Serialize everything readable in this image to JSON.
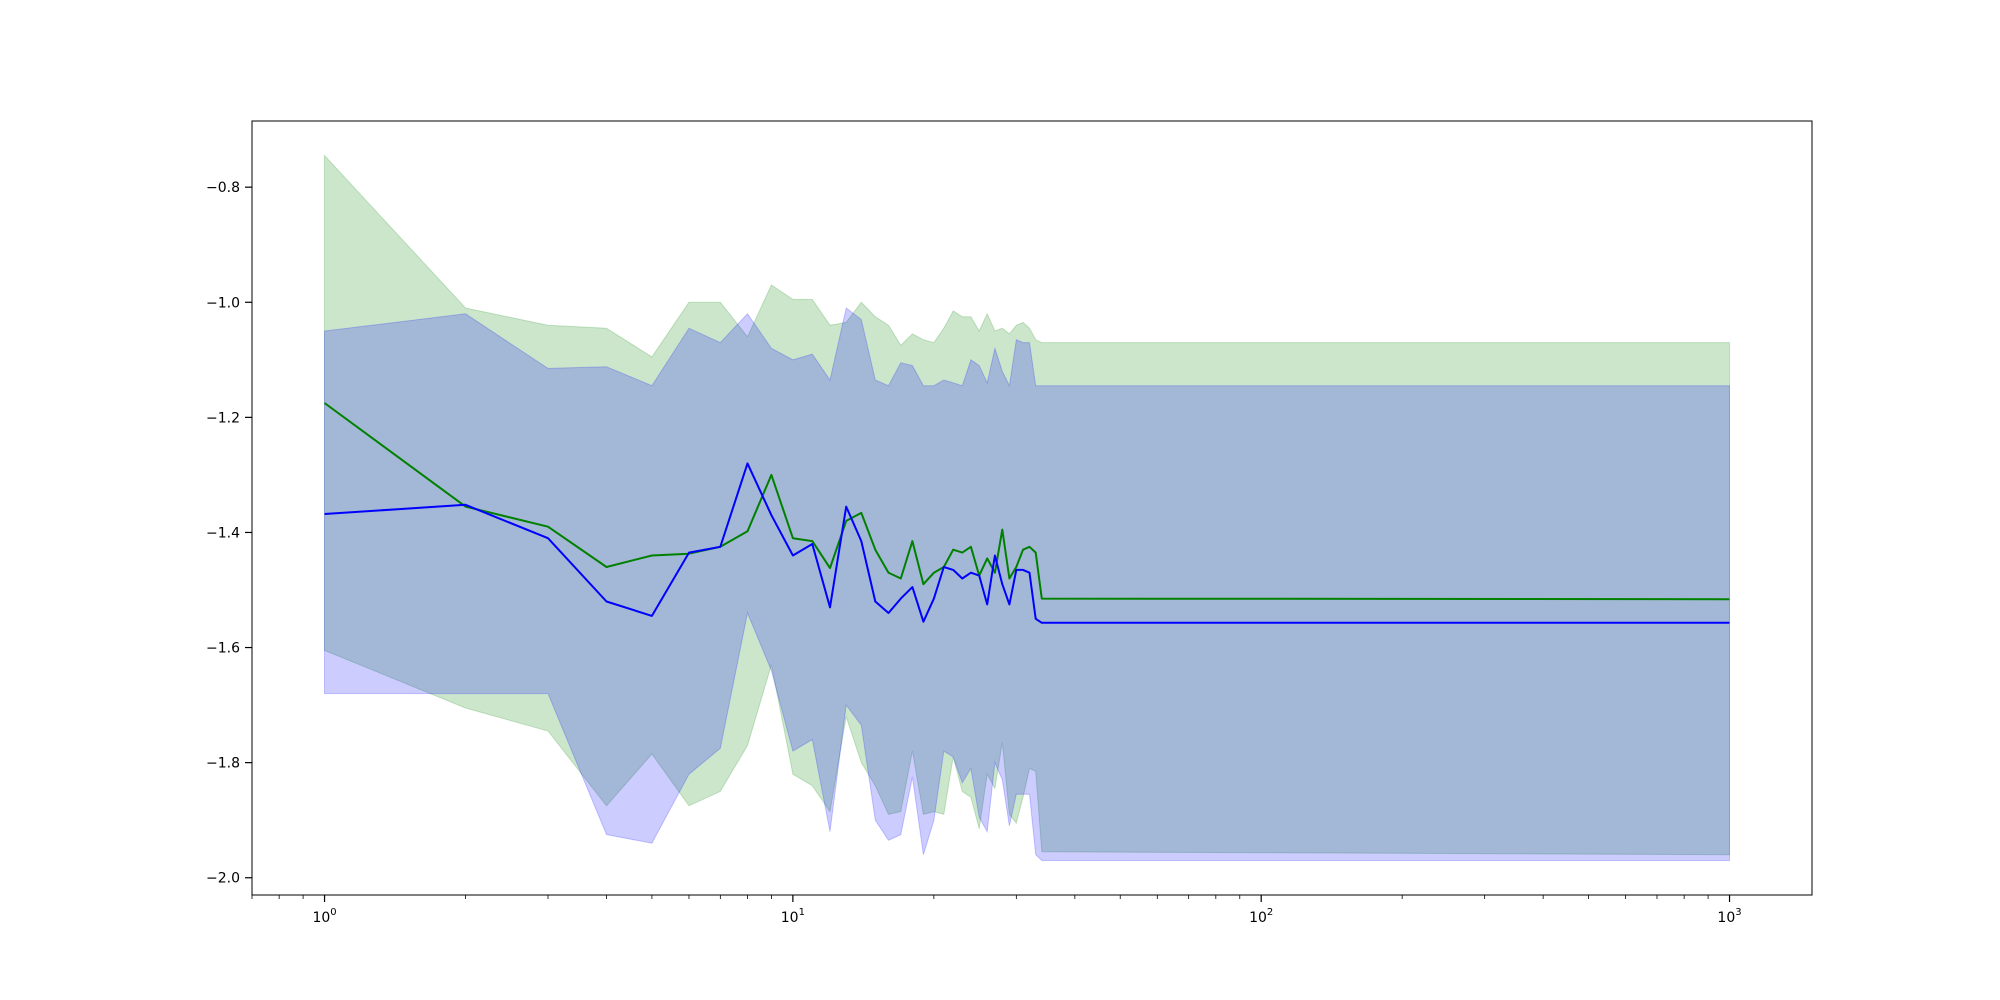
{
  "chart_data": {
    "type": "line",
    "title": "",
    "xlabel": "",
    "ylabel": "",
    "xscale": "log",
    "xlim": [
      0.7,
      1500
    ],
    "ylim": [
      -2.03,
      -0.685
    ],
    "grid": false,
    "legend": "none",
    "x_ticks": [
      {
        "value": 1,
        "base": "10",
        "exp": "0"
      },
      {
        "value": 10,
        "base": "10",
        "exp": "1"
      },
      {
        "value": 100,
        "base": "10",
        "exp": "2"
      },
      {
        "value": 1000,
        "base": "10",
        "exp": "3"
      }
    ],
    "y_ticks": [
      {
        "value": -0.8,
        "label": "−0.8"
      },
      {
        "value": -1.0,
        "label": "−1.0"
      },
      {
        "value": -1.2,
        "label": "−1.2"
      },
      {
        "value": -1.4,
        "label": "−1.4"
      },
      {
        "value": -1.6,
        "label": "−1.6"
      },
      {
        "value": -1.8,
        "label": "−1.8"
      },
      {
        "value": -2.0,
        "label": "−2.0"
      }
    ],
    "series": [
      {
        "color": "#008000",
        "band_color": "#008000",
        "band_opacity": 0.2,
        "x": [
          1,
          2,
          3,
          4,
          5,
          6,
          7,
          8,
          9,
          10,
          11,
          12,
          13,
          14,
          15,
          16,
          17,
          18,
          19,
          20,
          21,
          22,
          23,
          24,
          25,
          26,
          27,
          28,
          29,
          30,
          31,
          32,
          33,
          34,
          1000
        ],
        "y": [
          -1.175,
          -1.355,
          -1.39,
          -1.46,
          -1.44,
          -1.437,
          -1.425,
          -1.398,
          -1.3,
          -1.41,
          -1.415,
          -1.462,
          -1.38,
          -1.366,
          -1.43,
          -1.47,
          -1.48,
          -1.415,
          -1.49,
          -1.47,
          -1.46,
          -1.43,
          -1.435,
          -1.425,
          -1.475,
          -1.445,
          -1.47,
          -1.395,
          -1.48,
          -1.46,
          -1.43,
          -1.425,
          -1.435,
          -1.515,
          -1.516
        ],
        "upper": [
          -0.745,
          -1.01,
          -1.04,
          -1.045,
          -1.095,
          -1.0,
          -1.0,
          -1.06,
          -0.97,
          -0.995,
          -0.995,
          -1.04,
          -1.035,
          -1.0,
          -1.025,
          -1.04,
          -1.075,
          -1.055,
          -1.065,
          -1.07,
          -1.045,
          -1.015,
          -1.025,
          -1.025,
          -1.05,
          -1.02,
          -1.05,
          -1.045,
          -1.055,
          -1.04,
          -1.035,
          -1.045,
          -1.065,
          -1.07,
          -1.07
        ],
        "lower": [
          -1.605,
          -1.705,
          -1.745,
          -1.875,
          -1.785,
          -1.875,
          -1.85,
          -1.77,
          -1.63,
          -1.82,
          -1.84,
          -1.885,
          -1.72,
          -1.8,
          -1.84,
          -1.89,
          -1.885,
          -1.78,
          -1.89,
          -1.885,
          -1.89,
          -1.79,
          -1.85,
          -1.86,
          -1.915,
          -1.82,
          -1.845,
          -1.765,
          -1.89,
          -1.905,
          -1.86,
          -1.81,
          -1.815,
          -1.955,
          -1.96
        ]
      },
      {
        "color": "#0000ff",
        "band_color": "#0000ff",
        "band_opacity": 0.2,
        "x": [
          1,
          2,
          3,
          4,
          5,
          6,
          7,
          8,
          9,
          10,
          11,
          12,
          13,
          14,
          15,
          16,
          17,
          18,
          19,
          20,
          21,
          22,
          23,
          24,
          25,
          26,
          27,
          28,
          29,
          30,
          31,
          32,
          33,
          34,
          1000
        ],
        "y": [
          -1.368,
          -1.352,
          -1.41,
          -1.52,
          -1.545,
          -1.435,
          -1.425,
          -1.28,
          -1.37,
          -1.44,
          -1.42,
          -1.53,
          -1.355,
          -1.415,
          -1.52,
          -1.54,
          -1.515,
          -1.495,
          -1.555,
          -1.515,
          -1.46,
          -1.465,
          -1.48,
          -1.47,
          -1.475,
          -1.525,
          -1.44,
          -1.49,
          -1.525,
          -1.465,
          -1.465,
          -1.47,
          -1.55,
          -1.557,
          -1.557
        ],
        "upper": [
          -1.05,
          -1.02,
          -1.115,
          -1.112,
          -1.145,
          -1.045,
          -1.07,
          -1.02,
          -1.08,
          -1.1,
          -1.09,
          -1.135,
          -1.01,
          -1.03,
          -1.135,
          -1.145,
          -1.105,
          -1.11,
          -1.145,
          -1.145,
          -1.135,
          -1.14,
          -1.145,
          -1.1,
          -1.11,
          -1.14,
          -1.08,
          -1.12,
          -1.145,
          -1.065,
          -1.07,
          -1.07,
          -1.145,
          -1.145,
          -1.145
        ],
        "lower": [
          -1.68,
          -1.68,
          -1.68,
          -1.925,
          -1.94,
          -1.82,
          -1.775,
          -1.54,
          -1.64,
          -1.78,
          -1.76,
          -1.92,
          -1.7,
          -1.735,
          -1.9,
          -1.935,
          -1.925,
          -1.825,
          -1.96,
          -1.9,
          -1.78,
          -1.79,
          -1.835,
          -1.81,
          -1.895,
          -1.92,
          -1.8,
          -1.83,
          -1.91,
          -1.855,
          -1.855,
          -1.855,
          -1.96,
          -1.97,
          -1.97
        ]
      }
    ]
  }
}
